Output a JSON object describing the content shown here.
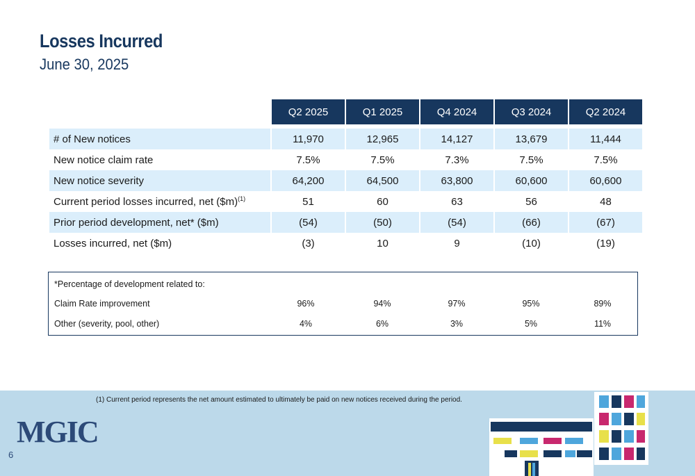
{
  "header": {
    "title": "Losses Incurred",
    "subtitle": "June 30, 2025"
  },
  "table": {
    "columns": [
      "Q2 2025",
      "Q1 2025",
      "Q4 2024",
      "Q3 2024",
      "Q2 2024"
    ],
    "rows": [
      {
        "label": "# of New notices",
        "values": [
          "11,970",
          "12,965",
          "14,127",
          "13,679",
          "11,444"
        ]
      },
      {
        "label": "New notice claim rate",
        "values": [
          "7.5%",
          "7.5%",
          "7.3%",
          "7.5%",
          "7.5%"
        ]
      },
      {
        "label": "New notice severity",
        "values": [
          "64,200",
          "64,500",
          "63,800",
          "60,600",
          "60,600"
        ]
      },
      {
        "label": "Current period losses incurred, net ($m)",
        "sup": "(1)",
        "values": [
          "51",
          "60",
          "63",
          "56",
          "48"
        ]
      },
      {
        "label": "Prior period development, net* ($m)",
        "values": [
          "(54)",
          "(50)",
          "(54)",
          "(66)",
          "(67)"
        ]
      },
      {
        "label": "Losses incurred, net ($m)",
        "values": [
          "(3)",
          "10",
          "9",
          "(10)",
          "(19)"
        ]
      }
    ]
  },
  "development": {
    "heading": "*Percentage of development related to:",
    "rows": [
      {
        "label": "Claim Rate improvement",
        "values": [
          "96%",
          "94%",
          "97%",
          "95%",
          "89%"
        ]
      },
      {
        "label": "Other (severity, pool, other)",
        "values": [
          "4%",
          "6%",
          "3%",
          "5%",
          "11%"
        ]
      }
    ]
  },
  "footer": {
    "footnote": "(1)   Current period represents the net amount estimated to ultimately be paid on new notices received during the period.",
    "logo": "MGIC",
    "page_number": "6"
  },
  "colors": {
    "navy": "#17375e",
    "light_blue_row": "#dbeefb",
    "footer_band": "#bcd9ea"
  }
}
